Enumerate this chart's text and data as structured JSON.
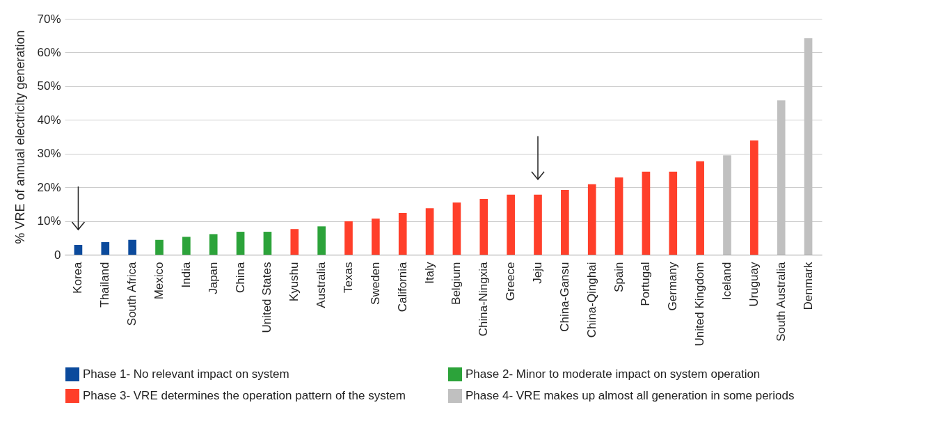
{
  "chart_data": {
    "type": "bar",
    "ylabel": "% VRE of annual electricity generation",
    "categories": [
      "Korea",
      "Thailand",
      "South Africa",
      "Mexico",
      "India",
      "Japan",
      "China",
      "United States",
      "Kyushu",
      "Australia",
      "Texas",
      "Sweden",
      "California",
      "Italy",
      "Belgium",
      "China-Ningxia",
      "Greece",
      "Jeju",
      "China-Gansu",
      "China-Qinghai",
      "Spain",
      "Portugal",
      "Germany",
      "United Kingdom",
      "Iceland",
      "Uruguay",
      "South Australia",
      "Denmark"
    ],
    "series": [
      {
        "name": "Phase 1- No relevant impact on system",
        "color": "#0b4a9c",
        "values": [
          2.9,
          3.7,
          4.4,
          null,
          null,
          null,
          null,
          null,
          null,
          null,
          null,
          null,
          null,
          null,
          null,
          null,
          null,
          null,
          null,
          null,
          null,
          null,
          null,
          null,
          null,
          null,
          null,
          null
        ]
      },
      {
        "name": "Phase 2- Minor to moderate impact on system operation",
        "color": "#2ca33a",
        "values": [
          null,
          null,
          null,
          4.4,
          5.3,
          6.1,
          6.8,
          6.8,
          null,
          8.4,
          null,
          null,
          null,
          null,
          null,
          null,
          null,
          null,
          null,
          null,
          null,
          null,
          null,
          null,
          null,
          null,
          null,
          null
        ]
      },
      {
        "name": "Phase 3- VRE determines the operation pattern of the system",
        "color": "#ff3f2a",
        "values": [
          null,
          null,
          null,
          null,
          null,
          null,
          null,
          null,
          7.6,
          null,
          9.9,
          10.7,
          12.4,
          13.8,
          15.5,
          16.5,
          17.8,
          17.8,
          19.2,
          20.9,
          22.9,
          24.6,
          24.6,
          27.7,
          null,
          33.9,
          null,
          null
        ]
      },
      {
        "name": "Phase 4- VRE makes up almost all generation in some periods",
        "color": "#c0c0c0",
        "values": [
          null,
          null,
          null,
          null,
          null,
          null,
          null,
          null,
          null,
          null,
          null,
          null,
          null,
          null,
          null,
          null,
          null,
          null,
          null,
          null,
          null,
          null,
          null,
          null,
          29.5,
          null,
          45.8,
          64.2
        ]
      }
    ],
    "ylim": [
      0,
      70
    ],
    "yticks": [
      0,
      {
        "value": 10,
        "label": "10%"
      },
      {
        "value": 20,
        "label": "20%"
      },
      {
        "value": 30,
        "label": "30%"
      },
      {
        "value": 40,
        "label": "40%"
      },
      {
        "value": 50,
        "label": "50%"
      },
      {
        "value": 60,
        "label": "60%"
      },
      {
        "value": 70,
        "label": "70%"
      }
    ],
    "grid": "y",
    "legend": "bottom"
  }
}
